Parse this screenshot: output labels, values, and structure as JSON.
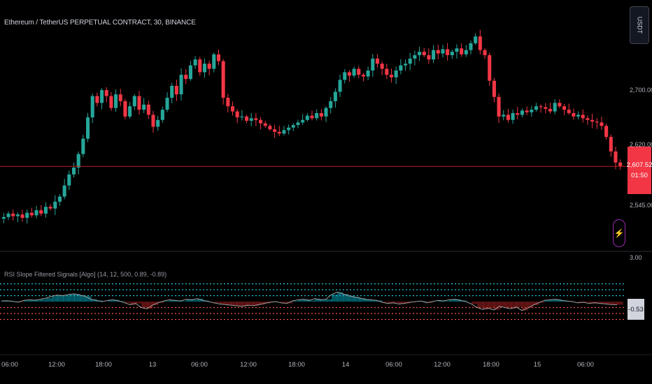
{
  "header": {
    "symbol_title": "Ethereum / TetherUS PERPETUAL CONTRACT, 30, BINANCE",
    "currency_button": "USDT"
  },
  "indicator": {
    "title": "RSI Slope Filtered Signals [Algo] (14, 12, 500, 0.89, -0.89)",
    "value_label": "-0.53",
    "fill_colors": {
      "positive": "#00bcd4",
      "negative": "#c62828",
      "line": "#9e9e9e"
    },
    "bands_upper_color": "#26c6da",
    "bands_lower_color": "#ef5350"
  },
  "price_axis": {
    "labels": [
      "2,700.00",
      "2,620.00",
      "2,545.00"
    ],
    "current_price": "2,607.52",
    "countdown": "01:50",
    "indicator_axis_label": "3.00"
  },
  "time_axis": {
    "labels": [
      "06:00",
      "12:00",
      "18:00",
      "13",
      "06:00",
      "12:00",
      "18:00",
      "14",
      "06:00",
      "12:00",
      "18:00",
      "15",
      "06:00"
    ]
  },
  "colors": {
    "up": "#26a69a",
    "down": "#f23645",
    "price_line": "#b71c1c",
    "background": "#000000",
    "separator": "#2a2e39"
  },
  "chart_data": {
    "type": "candlestick",
    "interval": "30",
    "ylim": [
      2520,
      2770
    ],
    "close_series": [
      2548,
      2552,
      2549,
      2551,
      2547,
      2553,
      2550,
      2556,
      2552,
      2560,
      2558,
      2566,
      2572,
      2585,
      2598,
      2606,
      2622,
      2640,
      2665,
      2690,
      2682,
      2697,
      2690,
      2676,
      2692,
      2684,
      2666,
      2678,
      2690,
      2674,
      2680,
      2668,
      2654,
      2662,
      2674,
      2688,
      2702,
      2692,
      2715,
      2710,
      2726,
      2733,
      2718,
      2728,
      2722,
      2739,
      2731,
      2688,
      2678,
      2672,
      2665,
      2666,
      2661,
      2664,
      2662,
      2658,
      2655,
      2651,
      2648,
      2646,
      2650,
      2653,
      2656,
      2659,
      2662,
      2667,
      2664,
      2670,
      2666,
      2676,
      2684,
      2695,
      2709,
      2718,
      2714,
      2722,
      2715,
      2713,
      2720,
      2734,
      2728,
      2722,
      2715,
      2712,
      2720,
      2726,
      2728,
      2734,
      2738,
      2742,
      2738,
      2733,
      2744,
      2740,
      2745,
      2738,
      2742,
      2746,
      2739,
      2744,
      2752,
      2760,
      2744,
      2738,
      2708,
      2689,
      2666,
      2668,
      2662,
      2670,
      2668,
      2673,
      2671,
      2674,
      2678,
      2677,
      2675,
      2672,
      2682,
      2678,
      2674,
      2670,
      2666,
      2668,
      2664,
      2662,
      2660,
      2659,
      2655,
      2642,
      2625,
      2612,
      2607.52
    ],
    "rsi_slope_series": [
      0.1,
      0.15,
      0.05,
      -0.1,
      0.2,
      0.3,
      0.25,
      0.4,
      0.6,
      0.9,
      1.1,
      1.0,
      1.2,
      1.3,
      1.1,
      0.9,
      0.4,
      0.2,
      0.0,
      0.2,
      0.3,
      0.1,
      -0.2,
      -0.5,
      -0.3,
      -1.0,
      -1.2,
      -0.6,
      -0.2,
      0.1,
      0.3,
      0.2,
      0.1,
      0.4,
      0.3,
      0.5,
      0.2,
      0.0,
      -0.2,
      -0.4,
      -0.5,
      -0.6,
      -0.7,
      -0.8,
      -0.6,
      -0.7,
      -0.5,
      -0.3,
      -0.1,
      0.0,
      -0.2,
      -0.3,
      0.1,
      0.3,
      0.4,
      0.2,
      0.5,
      0.3,
      0.4,
      1.2,
      1.6,
      1.3,
      1.0,
      0.8,
      0.6,
      0.4,
      0.3,
      0.2,
      -0.1,
      -0.3,
      -0.2,
      -0.4,
      -0.3,
      -0.1,
      0.0,
      0.1,
      -0.2,
      0.0,
      0.2,
      0.1,
      0.3,
      0.4,
      0.2,
      0.0,
      -0.4,
      -1.0,
      -1.3,
      -1.1,
      -1.4,
      -0.8,
      -1.0,
      -1.2,
      -0.9,
      -1.5,
      -1.1,
      -0.6,
      -0.2,
      0.2,
      0.3,
      0.4,
      0.2,
      0.1,
      0.0,
      -0.2,
      -0.1,
      -0.3,
      -0.2,
      -0.3,
      -0.4,
      -0.5,
      -0.53
    ],
    "upper_bands": [
      3.0,
      2.0,
      1.0
    ],
    "lower_bands": [
      -1.0,
      -2.0,
      -3.0
    ]
  }
}
